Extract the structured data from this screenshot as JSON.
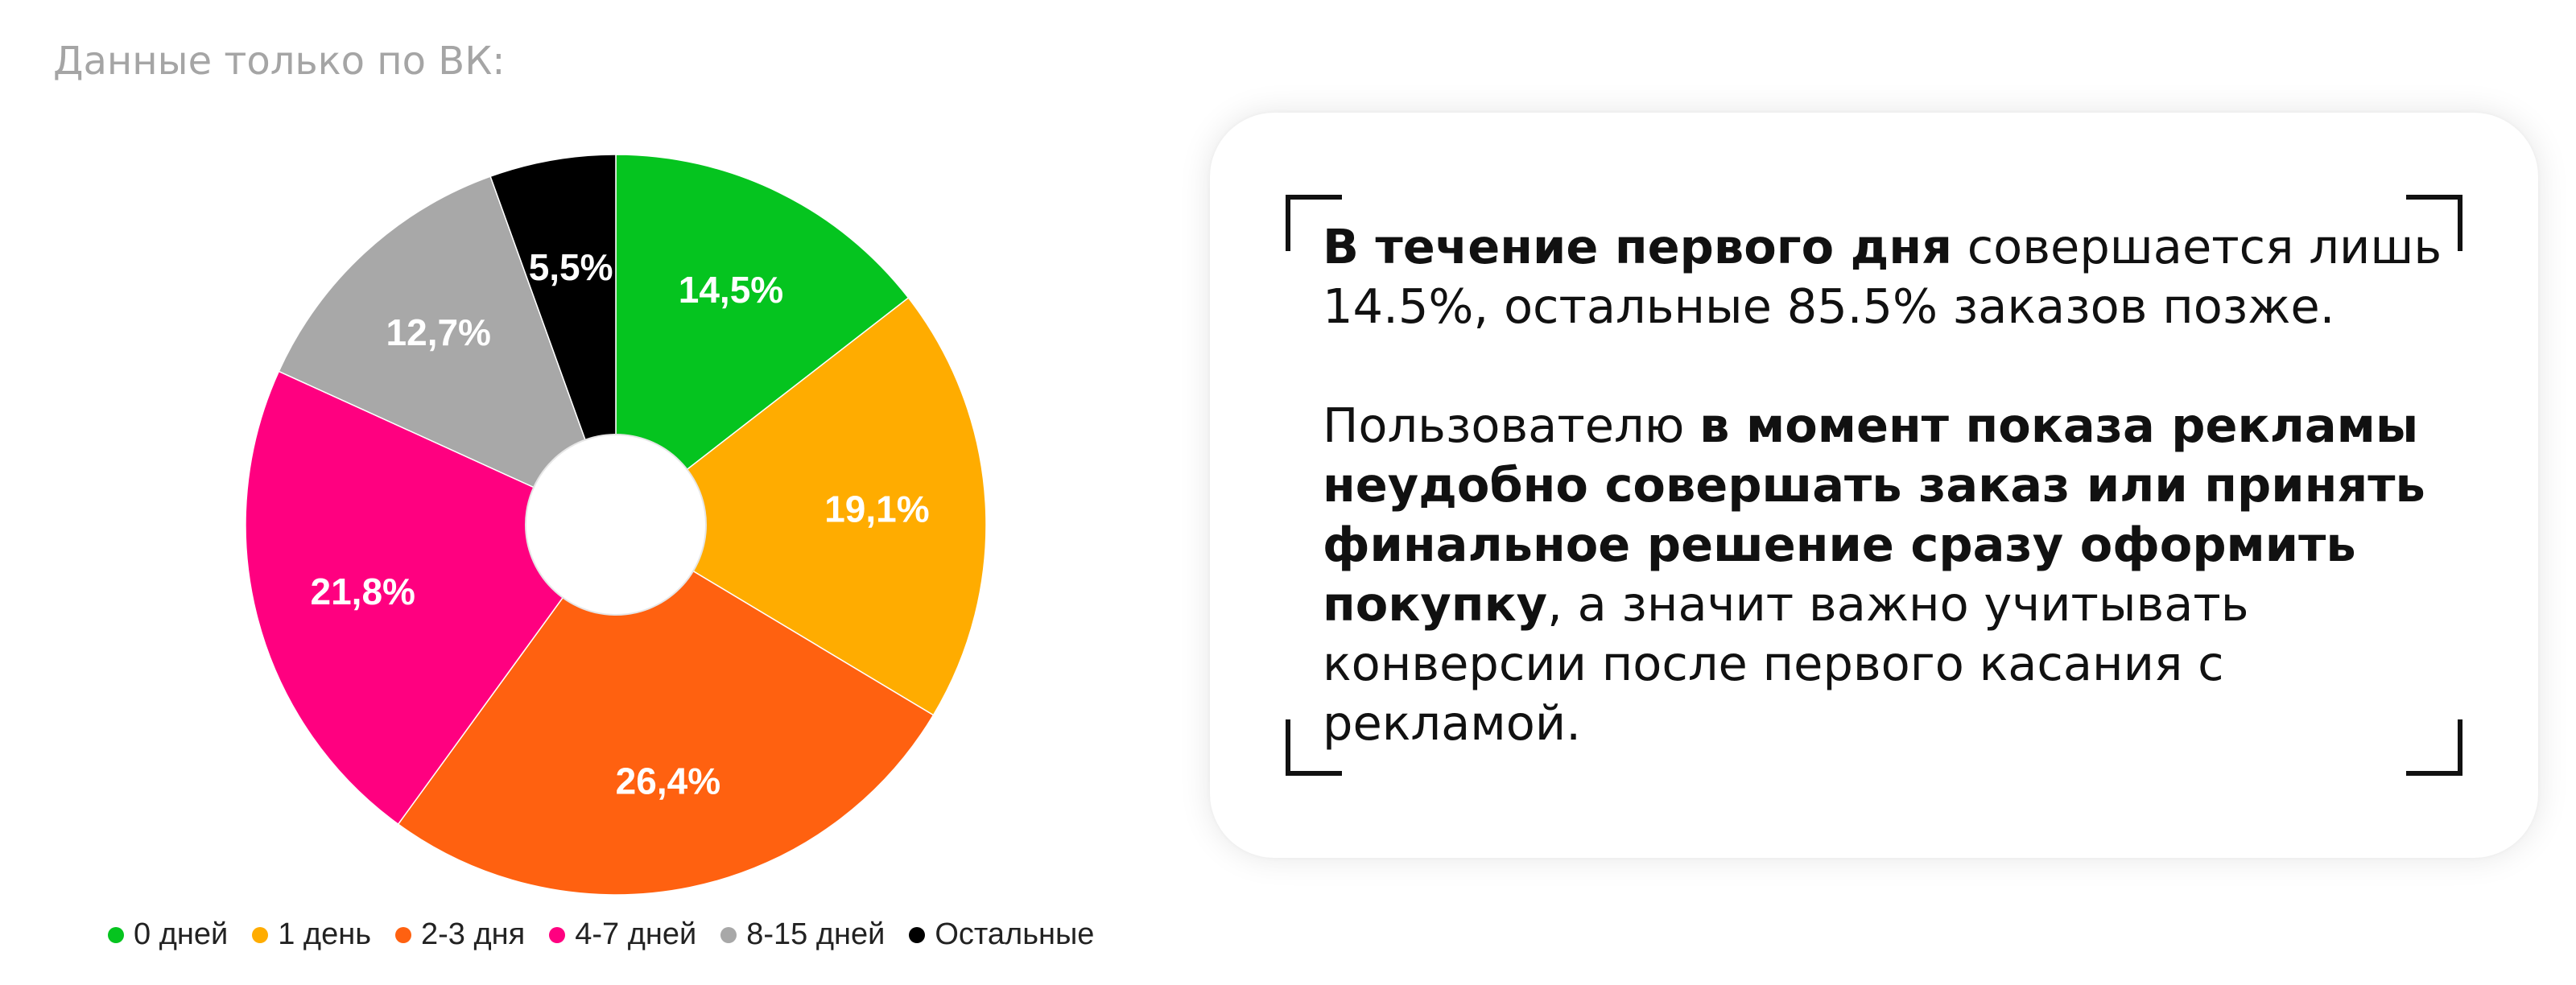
{
  "subtitle": "Данные только по ВК:",
  "chart_data": {
    "type": "pie",
    "variant": "donut",
    "categories": [
      "0 дней",
      "1 день",
      "2-3 дня",
      "4-7 дней",
      "8-15 дней",
      "Остальные"
    ],
    "values": [
      14.5,
      19.1,
      26.4,
      21.8,
      12.7,
      5.5
    ],
    "data_labels": [
      "14,5%",
      "19,1%",
      "26,4%",
      "21,8%",
      "12,7%",
      "5,5%"
    ],
    "colors": [
      "#05c41f",
      "#ffac00",
      "#ff6110",
      "#ff0080",
      "#a8a8a8",
      "#000000"
    ],
    "legend": "bottom"
  },
  "legend_items": [
    {
      "label": "0 дней",
      "color": "#05c41f"
    },
    {
      "label": "1 день",
      "color": "#ffac00"
    },
    {
      "label": "2-3 дня",
      "color": "#ff6110"
    },
    {
      "label": "4-7 дней",
      "color": "#ff0080"
    },
    {
      "label": "8-15 дней",
      "color": "#a8a8a8"
    },
    {
      "label": "Остальные",
      "color": "#000000"
    }
  ],
  "card": {
    "p1_bold": "В течение первого дня",
    "p1_rest": " совершается лишь 14.5%, остальные 85.5% заказов позже.",
    "p2_start": "Пользователю ",
    "p2_bold": "в момент показа рекламы неудобно совершать заказ или принять финальное решение сразу оформить покупку",
    "p2_rest": ", а значит важно учитывать конверсии после первого касания с рекламой."
  }
}
